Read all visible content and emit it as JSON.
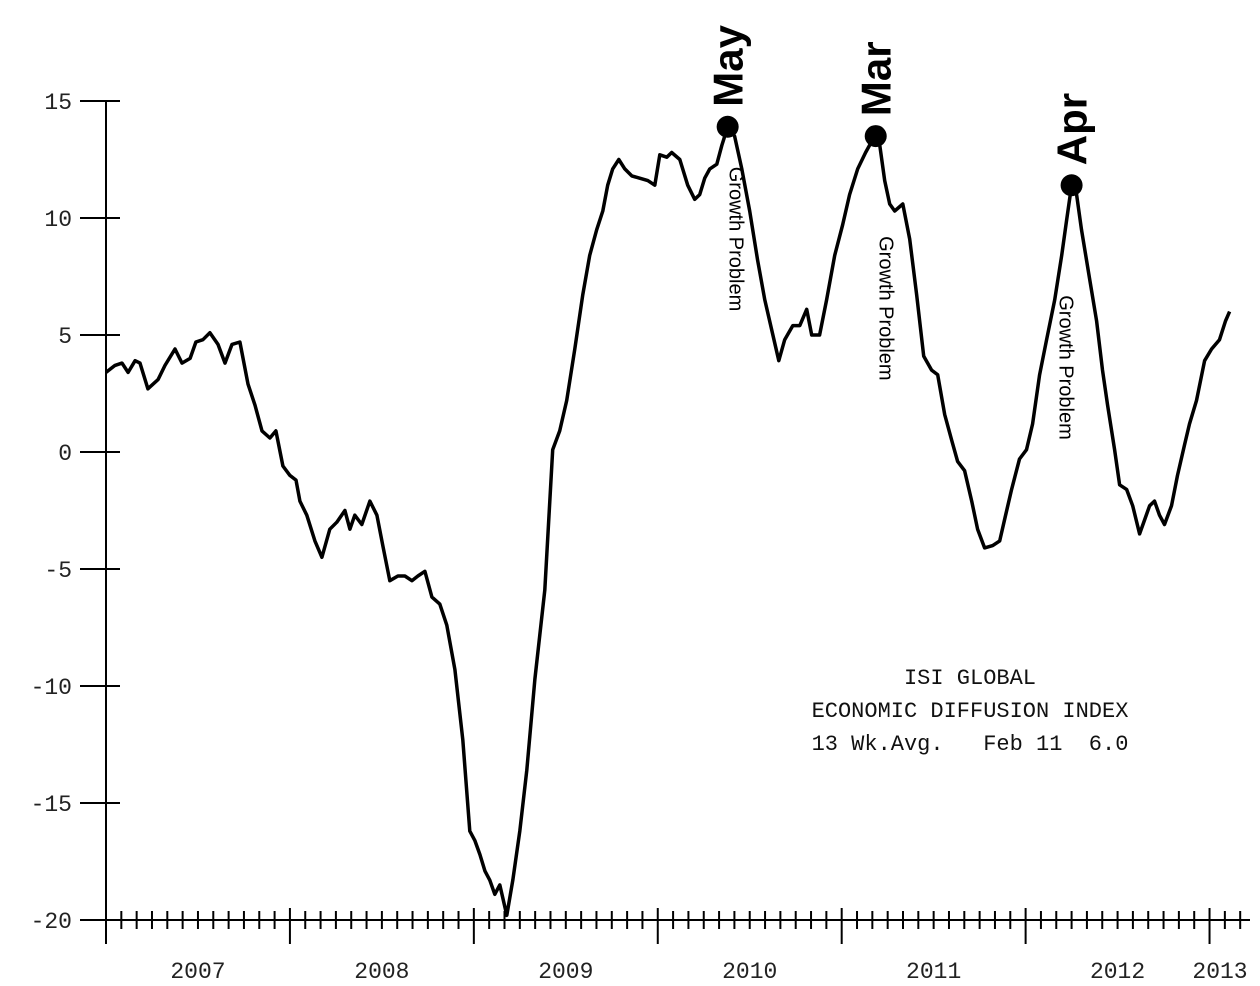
{
  "chart_data": {
    "type": "line",
    "color": "#000000",
    "x": [
      2007.0,
      2007.049,
      2007.087,
      2007.12,
      2007.158,
      2007.185,
      2007.228,
      2007.283,
      2007.321,
      2007.375,
      2007.413,
      2007.457,
      2007.489,
      2007.527,
      2007.565,
      2007.609,
      2007.647,
      2007.685,
      2007.728,
      2007.772,
      2007.81,
      2007.848,
      2007.891,
      2007.924,
      2007.962,
      2008.0,
      2008.033,
      2008.054,
      2008.092,
      2008.136,
      2008.174,
      2008.217,
      2008.255,
      2008.299,
      2008.326,
      2008.353,
      2008.391,
      2008.435,
      2008.473,
      2008.505,
      2008.543,
      2008.587,
      2008.625,
      2008.663,
      2008.696,
      2008.734,
      2008.772,
      2008.815,
      2008.853,
      2008.897,
      2008.94,
      2008.978,
      2009.005,
      2009.033,
      2009.06,
      2009.087,
      2009.114,
      2009.141,
      2009.179,
      2009.212,
      2009.25,
      2009.288,
      2009.332,
      2009.386,
      2009.429,
      2009.467,
      2009.505,
      2009.549,
      2009.592,
      2009.63,
      2009.668,
      2009.701,
      2009.728,
      2009.755,
      2009.788,
      2009.821,
      2009.859,
      2009.902,
      2009.946,
      2009.984,
      2010.011,
      2010.049,
      2010.076,
      2010.12,
      2010.163,
      2010.201,
      2010.228,
      2010.255,
      2010.283,
      2010.321,
      2010.348,
      2010.38,
      2010.418,
      2010.457,
      2010.5,
      2010.543,
      2010.582,
      2010.62,
      2010.658,
      2010.69,
      2010.734,
      2010.772,
      2010.81,
      2010.837,
      2010.88,
      2010.918,
      2010.962,
      2011.005,
      2011.043,
      2011.087,
      2011.13,
      2011.179,
      2011.207,
      2011.234,
      2011.261,
      2011.288,
      2011.332,
      2011.37,
      2011.408,
      2011.446,
      2011.489,
      2011.522,
      2011.56,
      2011.598,
      2011.63,
      2011.668,
      2011.707,
      2011.739,
      2011.777,
      2011.821,
      2011.859,
      2011.891,
      2011.924,
      2011.967,
      2012.005,
      2012.038,
      2012.076,
      2012.114,
      2012.158,
      2012.196,
      2012.223,
      2012.25,
      2012.277,
      2012.304,
      2012.348,
      2012.386,
      2012.418,
      2012.446,
      2012.484,
      2012.511,
      2012.549,
      2012.582,
      2012.62,
      2012.647,
      2012.674,
      2012.701,
      2012.728,
      2012.755,
      2012.793,
      2012.826,
      2012.864,
      2012.891,
      2012.929,
      2012.973,
      2013.011,
      2013.054,
      2013.087,
      2013.109
    ],
    "values": [
      3.4,
      3.7,
      3.8,
      3.4,
      3.9,
      3.8,
      2.7,
      3.1,
      3.7,
      4.4,
      3.8,
      4.0,
      4.7,
      4.8,
      5.1,
      4.6,
      3.8,
      4.6,
      4.7,
      2.9,
      2.0,
      0.9,
      0.6,
      0.9,
      -0.6,
      -1.0,
      -1.2,
      -2.1,
      -2.7,
      -3.8,
      -4.5,
      -3.3,
      -3.0,
      -2.5,
      -3.3,
      -2.7,
      -3.1,
      -2.1,
      -2.7,
      -4.0,
      -5.5,
      -5.3,
      -5.3,
      -5.5,
      -5.3,
      -5.1,
      -6.2,
      -6.5,
      -7.4,
      -9.3,
      -12.3,
      -16.2,
      -16.6,
      -17.2,
      -17.9,
      -18.3,
      -18.9,
      -18.5,
      -19.8,
      -18.3,
      -16.2,
      -13.6,
      -9.7,
      -5.9,
      0.1,
      0.9,
      2.2,
      4.4,
      6.7,
      8.4,
      9.5,
      10.3,
      11.4,
      12.1,
      12.5,
      12.1,
      11.8,
      11.7,
      11.6,
      11.4,
      12.7,
      12.6,
      12.8,
      12.5,
      11.4,
      10.8,
      11.0,
      11.7,
      12.1,
      12.3,
      13.1,
      13.9,
      13.5,
      12.1,
      10.3,
      8.2,
      6.5,
      5.2,
      3.9,
      4.8,
      5.4,
      5.4,
      6.1,
      5.0,
      5.0,
      6.5,
      8.4,
      9.7,
      11.0,
      12.1,
      12.8,
      13.5,
      13.1,
      11.6,
      10.6,
      10.3,
      10.6,
      9.1,
      6.7,
      4.1,
      3.5,
      3.3,
      1.6,
      0.5,
      -0.4,
      -0.8,
      -2.1,
      -3.3,
      -4.1,
      -4.0,
      -3.8,
      -2.7,
      -1.6,
      -0.3,
      0.1,
      1.2,
      3.3,
      4.8,
      6.5,
      8.4,
      9.9,
      11.4,
      11.0,
      9.5,
      7.4,
      5.6,
      3.5,
      2.0,
      0.1,
      -1.4,
      -1.6,
      -2.3,
      -3.5,
      -2.9,
      -2.3,
      -2.1,
      -2.7,
      -3.1,
      -2.3,
      -1.0,
      0.3,
      1.2,
      2.2,
      3.9,
      4.4,
      4.8,
      5.6,
      6.0
    ],
    "xlim": [
      2007,
      2013.22
    ],
    "ylim": [
      -20,
      15
    ],
    "xticks": [
      2007,
      2008,
      2009,
      2010,
      2011,
      2012,
      2013
    ],
    "yticks": [
      -20,
      -15,
      -10,
      -5,
      0,
      5,
      10,
      15
    ],
    "x_minor_ticks": 12,
    "annotations": [
      {
        "label": "May",
        "x": 2010.38,
        "y": 13.9,
        "note": "Growth Problem"
      },
      {
        "label": "Mar",
        "x": 2011.185,
        "y": 13.5,
        "note": "Growth Problem"
      },
      {
        "label": "Apr",
        "x": 2012.25,
        "y": 11.4,
        "note": "Growth Problem"
      }
    ],
    "note": [
      "ISI GLOBAL",
      "ECONOMIC DIFFUSION INDEX",
      "13 Wk.Avg.   Feb 11  6.0"
    ]
  }
}
